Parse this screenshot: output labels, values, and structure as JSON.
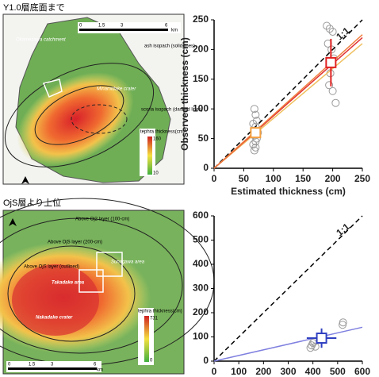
{
  "panels": [
    {
      "label": "Y1.0層底面まで"
    },
    {
      "label": "OjS層より上位"
    }
  ],
  "maps": [
    {
      "labels": [
        "Okamezawa catchment",
        "ash isopach (solid lines)",
        "Minamidake crater",
        "scoria isopach (dashed lines)"
      ],
      "legend": {
        "title": "tephra thickness(cm)",
        "max": 160,
        "min": 10
      },
      "scale": {
        "ticks": [
          0,
          1.5,
          3,
          6
        ],
        "unit": "km"
      }
    },
    {
      "labels": [
        "Above Oj2 layer (100-cm)",
        "Above OjS layer (200-cm)",
        "Above OjS layer (outlined)",
        "Takadake area",
        "Nakadake crater",
        "Sunagawa area"
      ],
      "legend": {
        "title": "tephra thickness(cm)",
        "max": 731,
        "min": 0
      },
      "scale": {
        "ticks": [
          0,
          1.5,
          3,
          6
        ],
        "unit": "km"
      }
    }
  ],
  "chart_data": [
    {
      "type": "scatter",
      "xlabel": "Estimated thickness (cm)",
      "ylabel": "Observed thickness (cm)",
      "annotation": "1:1",
      "xlim": [
        0,
        250
      ],
      "ylim": [
        0,
        250
      ],
      "xticks": [
        0,
        50,
        100,
        150,
        200,
        250
      ],
      "yticks": [
        0,
        50,
        100,
        150,
        200,
        250
      ],
      "series": [
        {
          "marker": "circle",
          "color": "#9a9a9a",
          "x": [
            68,
            70,
            72,
            66,
            70,
            74,
            68,
            72,
            70,
            66,
            70,
            68,
            190,
            195,
            200,
            192,
            198,
            202,
            196,
            194,
            200,
            205
          ],
          "values": [
            100,
            90,
            80,
            75,
            70,
            60,
            55,
            50,
            45,
            40,
            35,
            30,
            240,
            235,
            230,
            210,
            200,
            185,
            160,
            140,
            130,
            110
          ]
        },
        {
          "marker": "line",
          "style": "dashed",
          "color": "#000000",
          "x": [
            0,
            250
          ],
          "values": [
            0,
            250
          ]
        },
        {
          "marker": "line",
          "color": "#f0c060",
          "x": [
            0,
            250
          ],
          "values": [
            0,
            210
          ]
        },
        {
          "marker": "line",
          "color": "#e03030",
          "x": [
            0,
            250
          ],
          "values": [
            0,
            220
          ]
        },
        {
          "marker": "line",
          "color": "#f08040",
          "x": [
            0,
            250
          ],
          "values": [
            0,
            225
          ]
        },
        {
          "marker": "square",
          "color": "#f4a040",
          "x": [
            70
          ],
          "values": [
            60
          ]
        },
        {
          "marker": "square",
          "color": "#e02020",
          "x": [
            197
          ],
          "values": [
            178
          ],
          "yerr": [
            40
          ]
        }
      ]
    },
    {
      "type": "scatter",
      "annotation": "1:1",
      "xlim": [
        0,
        600
      ],
      "ylim": [
        0,
        600
      ],
      "xticks": [
        0,
        100,
        200,
        300,
        400,
        500,
        600
      ],
      "yticks": [
        0,
        100,
        200,
        300,
        400,
        500,
        600
      ],
      "series": [
        {
          "marker": "circle",
          "color": "#9a9a9a",
          "x": [
            390,
            395,
            400,
            405,
            410,
            520,
            522
          ],
          "values": [
            55,
            65,
            75,
            80,
            60,
            150,
            160
          ]
        },
        {
          "marker": "line",
          "style": "dashed",
          "color": "#000000",
          "x": [
            0,
            600
          ],
          "values": [
            0,
            600
          ]
        },
        {
          "marker": "line",
          "color": "#8080e0",
          "x": [
            0,
            600
          ],
          "values": [
            0,
            140
          ]
        },
        {
          "marker": "square",
          "color": "#3040c0",
          "x": [
            435
          ],
          "values": [
            95
          ],
          "xerr": [
            60
          ],
          "yerr": [
            40
          ]
        }
      ]
    }
  ]
}
